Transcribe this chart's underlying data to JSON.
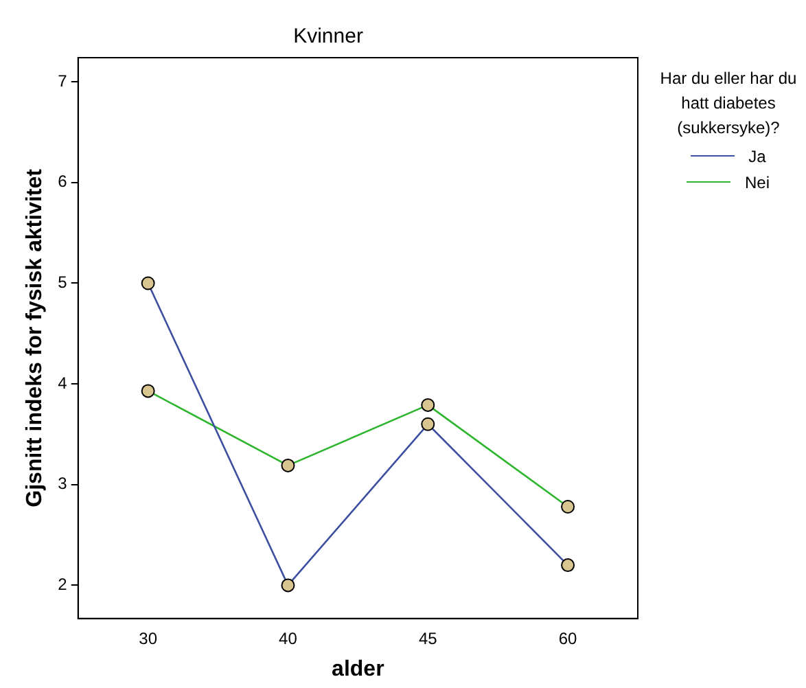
{
  "chart_data": {
    "type": "line",
    "title": "Kvinner",
    "xlabel": "alder",
    "ylabel": "Gjsnitt indeks for fysisk aktivitet",
    "legend_title": "Har du eller har du hatt diabetes (sukkersyke)?",
    "categories": [
      "30",
      "40",
      "45",
      "60"
    ],
    "series": [
      {
        "name": "Ja",
        "color": "#3d4fa0",
        "values": [
          5.0,
          2.0,
          3.6,
          2.2
        ]
      },
      {
        "name": "Nei",
        "color": "#2db52d",
        "values": [
          3.93,
          3.19,
          3.79,
          2.78
        ]
      }
    ],
    "ylim": [
      1.67,
      7.24
    ],
    "yticks": [
      2,
      3,
      4,
      5,
      6,
      7
    ],
    "marker": "circle",
    "legend": "right",
    "grid": false
  }
}
